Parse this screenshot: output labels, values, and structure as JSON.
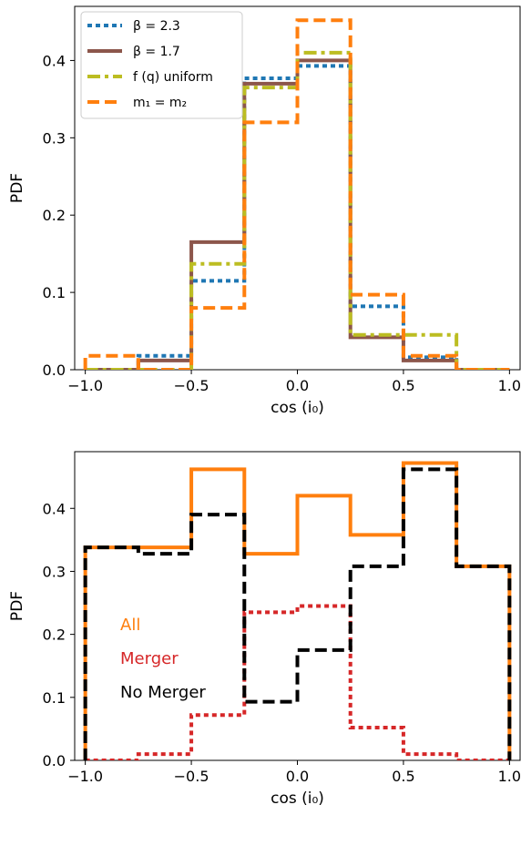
{
  "chart_data": [
    {
      "type": "line",
      "drawstyle": "steps",
      "xlabel": "cos (i₀)",
      "ylabel": "PDF",
      "xlim": [
        -1.05,
        1.05
      ],
      "ylim": [
        0,
        0.47
      ],
      "xticks": [
        -1.0,
        -0.5,
        0.0,
        0.5,
        1.0
      ],
      "xtick_labels": [
        "−1.0",
        "−0.5",
        "0.0",
        "0.5",
        "1.0"
      ],
      "yticks": [
        0.0,
        0.1,
        0.2,
        0.3,
        0.4
      ],
      "ytick_labels": [
        "0.0",
        "0.1",
        "0.2",
        "0.3",
        "0.4"
      ],
      "legend_position": "top-left",
      "bin_edges": [
        -1.0,
        -0.75,
        -0.5,
        -0.25,
        0.0,
        0.25,
        0.5,
        0.75,
        1.0
      ],
      "series": [
        {
          "name": "β = 2.3",
          "color": "#1f77b4",
          "style": "dotted",
          "values": [
            0.0,
            0.018,
            0.115,
            0.377,
            0.393,
            0.082,
            0.016,
            0.0
          ]
        },
        {
          "name": "β = 1.7",
          "color": "#8c564b",
          "style": "solid",
          "values": [
            0.0,
            0.012,
            0.165,
            0.37,
            0.4,
            0.042,
            0.012,
            0.0
          ]
        },
        {
          "name": "f (q) uniform",
          "color": "#bcbd22",
          "style": "dashdot",
          "values": [
            0.0,
            0.0,
            0.137,
            0.365,
            0.41,
            0.045,
            0.045,
            0.0
          ]
        },
        {
          "name": "m₁ = m₂",
          "color": "#ff7f0e",
          "style": "dashed",
          "values": [
            0.018,
            0.0,
            0.08,
            0.32,
            0.452,
            0.097,
            0.018,
            0.0
          ]
        }
      ]
    },
    {
      "type": "line",
      "drawstyle": "steps",
      "xlabel": "cos (i₀)",
      "ylabel": "PDF",
      "xlim": [
        -1.05,
        1.05
      ],
      "ylim": [
        0,
        0.49
      ],
      "xticks": [
        -1.0,
        -0.5,
        0.0,
        0.5,
        1.0
      ],
      "xtick_labels": [
        "−1.0",
        "−0.5",
        "0.0",
        "0.5",
        "1.0"
      ],
      "yticks": [
        0.0,
        0.1,
        0.2,
        0.3,
        0.4
      ],
      "ytick_labels": [
        "0.0",
        "0.1",
        "0.2",
        "0.3",
        "0.4"
      ],
      "bin_edges": [
        -1.0,
        -0.75,
        -0.5,
        -0.25,
        0.0,
        0.25,
        0.5,
        0.75,
        1.0
      ],
      "annotations": [
        {
          "text": "All",
          "color": "#ff7f0e"
        },
        {
          "text": "Merger",
          "color": "#d62728"
        },
        {
          "text": "No Merger",
          "color": "#000000"
        }
      ],
      "series": [
        {
          "name": "All",
          "color": "#ff7f0e",
          "style": "solid",
          "values": [
            0.338,
            0.338,
            0.462,
            0.328,
            0.42,
            0.358,
            0.472,
            0.308
          ]
        },
        {
          "name": "Merger",
          "color": "#d62728",
          "style": "dotted",
          "values": [
            0.0,
            0.01,
            0.072,
            0.235,
            0.245,
            0.052,
            0.01,
            0.0
          ]
        },
        {
          "name": "No Merger",
          "color": "#000000",
          "style": "dashed",
          "values": [
            0.338,
            0.328,
            0.39,
            0.093,
            0.175,
            0.308,
            0.462,
            0.308
          ]
        }
      ]
    }
  ]
}
